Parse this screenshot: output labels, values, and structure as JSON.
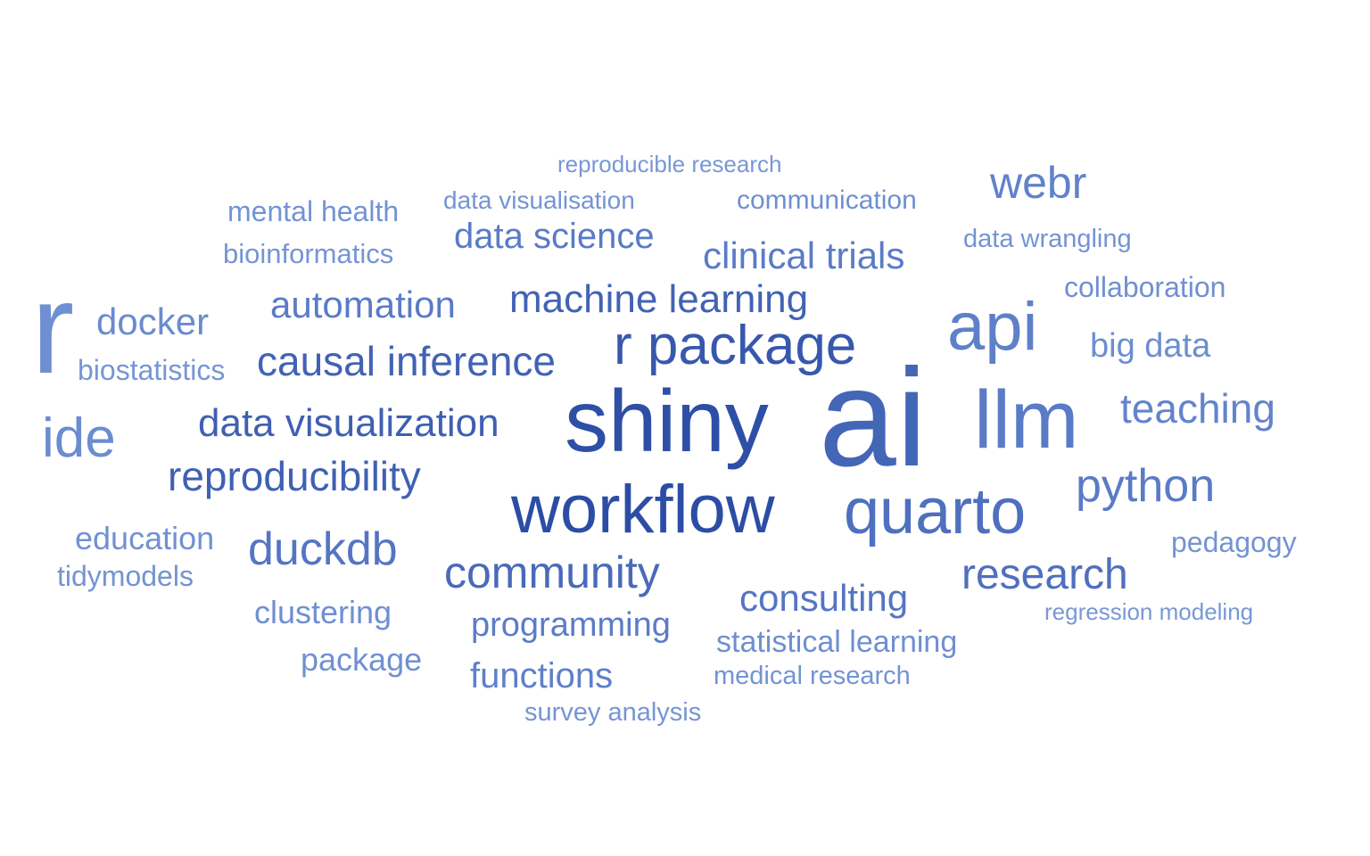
{
  "chart_data": {
    "type": "wordcloud",
    "title": "",
    "words": [
      {
        "text": "ai",
        "weight": 100,
        "color": "#4466b7"
      },
      {
        "text": "shiny",
        "weight": 86,
        "color": "#2e4fa6"
      },
      {
        "text": "llm",
        "weight": 80,
        "color": "#5a7bc6"
      },
      {
        "text": "workflow",
        "weight": 72,
        "color": "#2b4da5"
      },
      {
        "text": "quarto",
        "weight": 68,
        "color": "#4f6fbf"
      },
      {
        "text": "r",
        "weight": 64,
        "color": "#6e8fd1"
      },
      {
        "text": "api",
        "weight": 58,
        "color": "#5f80c9"
      },
      {
        "text": "r package",
        "weight": 52,
        "color": "#3858ac"
      },
      {
        "text": "ide",
        "weight": 50,
        "color": "#6b8ccf"
      },
      {
        "text": "python",
        "weight": 45,
        "color": "#5a7bc6"
      },
      {
        "text": "community",
        "weight": 43,
        "color": "#4a6ab9"
      },
      {
        "text": "research",
        "weight": 43,
        "color": "#4f6fbf"
      },
      {
        "text": "duckdb",
        "weight": 43,
        "color": "#5575c3"
      },
      {
        "text": "webr",
        "weight": 43,
        "color": "#6082cb"
      },
      {
        "text": "teaching",
        "weight": 40,
        "color": "#6384cc"
      },
      {
        "text": "causal inference",
        "weight": 40,
        "color": "#4262b4"
      },
      {
        "text": "reproducibility",
        "weight": 40,
        "color": "#4060b3"
      },
      {
        "text": "data visualization",
        "weight": 38,
        "color": "#3f5fb2"
      },
      {
        "text": "machine learning",
        "weight": 38,
        "color": "#4262b4"
      },
      {
        "text": "consulting",
        "weight": 36,
        "color": "#5575c3"
      },
      {
        "text": "automation",
        "weight": 36,
        "color": "#5a7bc6"
      },
      {
        "text": "clinical trials",
        "weight": 36,
        "color": "#5a7bc6"
      },
      {
        "text": "docker",
        "weight": 35,
        "color": "#6a8bcf"
      },
      {
        "text": "programming",
        "weight": 34,
        "color": "#5b7cc7"
      },
      {
        "text": "data science",
        "weight": 34,
        "color": "#5a7bc6"
      },
      {
        "text": "big data",
        "weight": 34,
        "color": "#6d8ed1"
      },
      {
        "text": "functions",
        "weight": 33,
        "color": "#5f80c9"
      },
      {
        "text": "package",
        "weight": 32,
        "color": "#7090d2"
      },
      {
        "text": "clustering",
        "weight": 31,
        "color": "#6f8fd1"
      },
      {
        "text": "education",
        "weight": 30,
        "color": "#7191d2"
      },
      {
        "text": "statistical learning",
        "weight": 29,
        "color": "#6f8fd1"
      },
      {
        "text": "collaboration",
        "weight": 28,
        "color": "#7090d2"
      },
      {
        "text": "pedagogy",
        "weight": 28,
        "color": "#7393d3"
      },
      {
        "text": "communication",
        "weight": 27,
        "color": "#6f8fd1"
      },
      {
        "text": "mental health",
        "weight": 27,
        "color": "#7393d3"
      },
      {
        "text": "tidymodels",
        "weight": 27,
        "color": "#7393d3"
      },
      {
        "text": "biostatistics",
        "weight": 26,
        "color": "#7696d4"
      },
      {
        "text": "medical research",
        "weight": 26,
        "color": "#7393d3"
      },
      {
        "text": "data wrangling",
        "weight": 26,
        "color": "#7494d3"
      },
      {
        "text": "bioinformatics",
        "weight": 26,
        "color": "#7595d4"
      },
      {
        "text": "survey analysis",
        "weight": 25,
        "color": "#7595d4"
      },
      {
        "text": "data visualisation",
        "weight": 25,
        "color": "#7494d3"
      },
      {
        "text": "reproducible research",
        "weight": 23,
        "color": "#7898d5"
      },
      {
        "text": "regression modeling",
        "weight": 23,
        "color": "#7898d5"
      }
    ]
  }
}
